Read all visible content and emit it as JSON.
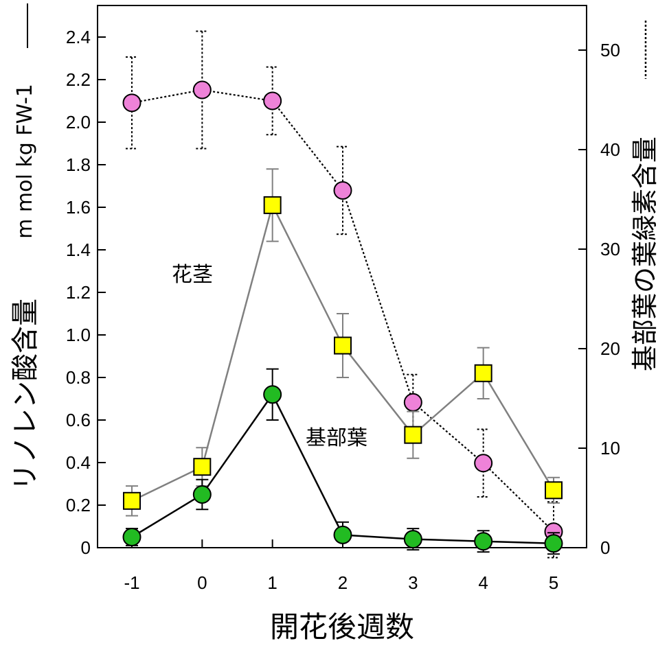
{
  "chart_data": {
    "type": "line",
    "x": [
      -1,
      0,
      1,
      2,
      3,
      4,
      5
    ],
    "x_tick_labels": [
      "-1",
      "0",
      "1",
      "2",
      "3",
      "4",
      "5"
    ],
    "xlim": [
      -1.2,
      5.3
    ],
    "xlabel": "開花後週数",
    "ylabel": "リノレン酸含量",
    "ylabel_unit": "m mol kg FW-1",
    "y2label": "基部葉の葉緑素含量",
    "ylim": [
      0,
      2.55
    ],
    "y2lim": [
      0,
      54.5
    ],
    "y_ticks": [
      0,
      0.2,
      0.4,
      0.6,
      0.8,
      1.0,
      1.2,
      1.4,
      1.6,
      1.8,
      2.0,
      2.2,
      2.4
    ],
    "y_tick_labels": [
      "0",
      "0.2",
      "0.4",
      "0.6",
      "0.8",
      "1.0",
      "1.2",
      "1.4",
      "1.6",
      "1.8",
      "2.0",
      "2.2",
      "2.4"
    ],
    "y2_ticks": [
      0,
      10,
      20,
      30,
      40,
      50
    ],
    "y2_tick_labels": [
      "0",
      "10",
      "20",
      "30",
      "40",
      "50"
    ],
    "grid": false,
    "annotations": [
      "花茎",
      "基部葉"
    ],
    "series": [
      {
        "name": "花茎",
        "axis": "left",
        "marker": "square",
        "color": "#ffff00",
        "line_color": "#808080",
        "line_style": "solid",
        "values": [
          0.22,
          0.38,
          1.61,
          0.95,
          0.53,
          0.82,
          0.27
        ],
        "errors": [
          0.07,
          0.09,
          0.17,
          0.15,
          0.11,
          0.12,
          0.06
        ]
      },
      {
        "name": "基部葉",
        "axis": "left",
        "marker": "circle",
        "color": "#22bb22",
        "line_color": "#000000",
        "line_style": "solid",
        "values": [
          0.05,
          0.25,
          0.72,
          0.06,
          0.04,
          0.03,
          0.02
        ],
        "errors": [
          0.04,
          0.07,
          0.12,
          0.06,
          0.05,
          0.05,
          0.05
        ]
      },
      {
        "name": "基部葉の葉緑素含量",
        "axis": "right",
        "marker": "circle",
        "color": "#ee82d8",
        "line_color": "#000000",
        "line_style": "dotted",
        "values": [
          44.7,
          46.0,
          44.9,
          35.9,
          14.6,
          8.5,
          1.6
        ],
        "errors": [
          4.6,
          5.9,
          3.4,
          4.4,
          2.8,
          3.4,
          3.0
        ]
      }
    ]
  }
}
